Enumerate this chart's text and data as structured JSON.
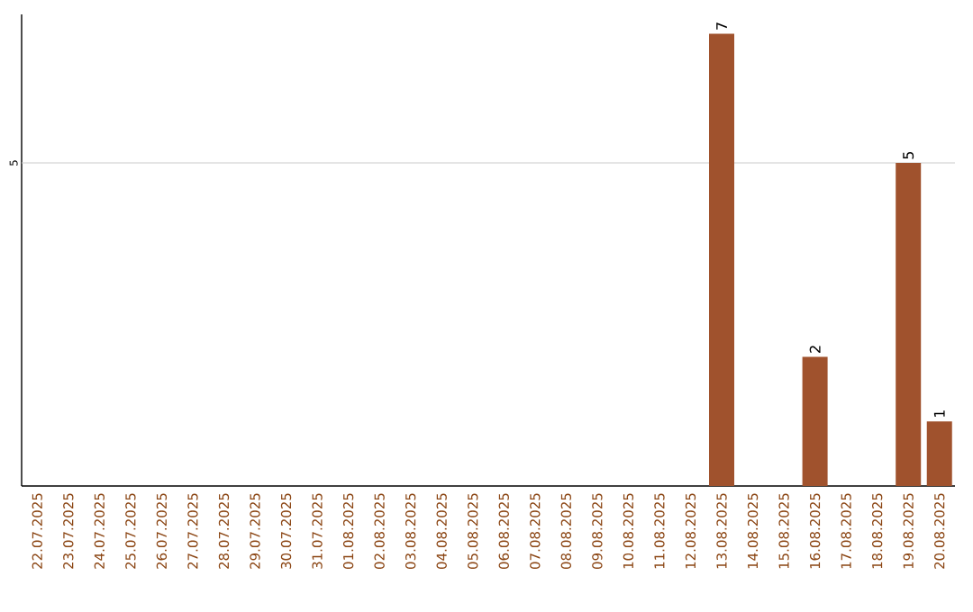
{
  "chart_data": {
    "type": "bar",
    "ylim": [
      0,
      7.3
    ],
    "categories": [
      "22.07.2025",
      "23.07.2025",
      "24.07.2025",
      "25.07.2025",
      "26.07.2025",
      "27.07.2025",
      "28.07.2025",
      "29.07.2025",
      "30.07.2025",
      "31.07.2025",
      "01.08.2025",
      "02.08.2025",
      "03.08.2025",
      "04.08.2025",
      "05.08.2025",
      "06.08.2025",
      "07.08.2025",
      "08.08.2025",
      "09.08.2025",
      "10.08.2025",
      "11.08.2025",
      "12.08.2025",
      "13.08.2025",
      "14.08.2025",
      "15.08.2025",
      "16.08.2025",
      "17.08.2025",
      "18.08.2025",
      "19.08.2025",
      "20.08.2025"
    ],
    "values": [
      null,
      null,
      null,
      null,
      null,
      null,
      null,
      null,
      null,
      null,
      null,
      null,
      null,
      null,
      null,
      null,
      null,
      null,
      null,
      null,
      null,
      null,
      7,
      null,
      null,
      2,
      null,
      null,
      5,
      1
    ],
    "data_labels": true,
    "color": "#a0522d",
    "ref_lines": [
      {
        "axis": "y",
        "value": 5,
        "label": "5",
        "color": "#cccccc"
      }
    ]
  }
}
